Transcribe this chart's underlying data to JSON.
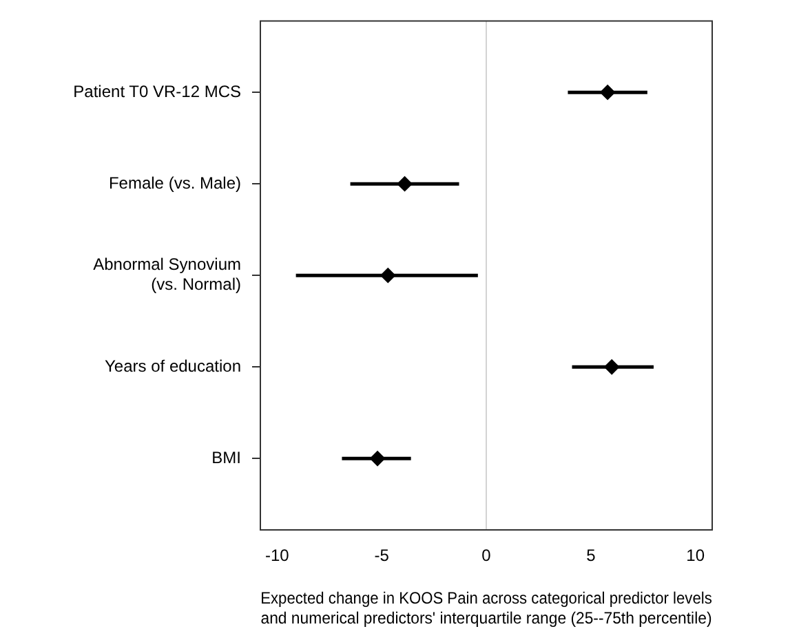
{
  "chart_data": {
    "type": "scatter",
    "orientation": "horizontal",
    "marker": "diamond",
    "color": "#000000",
    "grid": false,
    "legend": false,
    "categories": [
      "Patient T0 VR-12 MCS",
      "Female (vs. Male)",
      "Abnormal Synovium\n(vs. Normal)",
      "Years of education",
      "BMI"
    ],
    "values": [
      5.8,
      -3.9,
      -4.7,
      6.0,
      -5.2
    ],
    "errors": [
      [
        3.9,
        7.7
      ],
      [
        -6.5,
        -1.3
      ],
      [
        -9.1,
        -0.4
      ],
      [
        4.1,
        8.0
      ],
      [
        -6.9,
        -3.6
      ]
    ],
    "xlim": [
      -10.8,
      10.8
    ],
    "xticks": [
      -10,
      -5,
      0,
      5,
      10
    ],
    "xlabel": "Expected change in KOOS Pain across categorical predictor levels\nand numerical predictors' interquartile range (25--75th percentile)",
    "ref_lines": [
      {
        "axis": "x",
        "value": 0,
        "color": "#d3d3d3"
      }
    ]
  }
}
